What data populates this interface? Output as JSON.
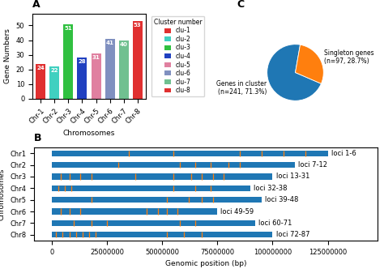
{
  "chart_data": [
    {
      "type": "bar",
      "title": "A",
      "categories": [
        "Chr-1",
        "Chr-2",
        "Chr-3",
        "Chr-4",
        "Chr-5",
        "Chr-6",
        "Chr-7",
        "Chr-8"
      ],
      "series": [
        {
          "name": "clu-1",
          "color": "#e03030",
          "values": [
            24,
            null,
            null,
            null,
            null,
            null,
            null,
            null
          ]
        },
        {
          "name": "clu-2",
          "color": "#40d0c0",
          "values": [
            null,
            22,
            null,
            null,
            null,
            null,
            null,
            null
          ]
        },
        {
          "name": "clu-3",
          "color": "#30c040",
          "values": [
            null,
            null,
            51,
            null,
            null,
            null,
            null,
            null
          ]
        },
        {
          "name": "clu-4",
          "color": "#2040c0",
          "values": [
            null,
            null,
            null,
            28,
            null,
            null,
            null,
            null
          ]
        },
        {
          "name": "clu-5",
          "color": "#e080a0",
          "values": [
            null,
            null,
            null,
            null,
            31,
            null,
            null,
            null
          ]
        },
        {
          "name": "clu-6",
          "color": "#8090c0",
          "values": [
            null,
            null,
            null,
            null,
            null,
            41,
            null,
            null
          ]
        },
        {
          "name": "clu-7",
          "color": "#70c090",
          "values": [
            null,
            null,
            null,
            null,
            null,
            null,
            40,
            null
          ]
        },
        {
          "name": "clu-8",
          "color": "#e03030",
          "values": [
            null,
            null,
            null,
            null,
            null,
            null,
            null,
            53
          ]
        }
      ],
      "x_label": "Chromosomes",
      "y_label": "Gene Numbers",
      "ylim": [
        0,
        58
      ],
      "yticks": [
        0,
        10,
        20,
        30,
        40,
        50
      ],
      "data_labels": true,
      "legend": "right",
      "legend_title": "Cluster number"
    },
    {
      "type": "pie",
      "title": "C",
      "values": [
        71.3,
        28.7
      ],
      "labels": [
        "Genes in cluster\n(n=241, 71.3%)",
        "Singleton genes\n(n=97, 28.7%)"
      ]
    },
    {
      "type": "bar",
      "orientation": "horizontal",
      "title": "B",
      "categories": [
        "Chr1",
        "Chr2",
        "Chr3",
        "Chr4",
        "Chr5",
        "Chr6",
        "Chr7",
        "Chr8"
      ],
      "values": [
        125000000,
        110000000,
        100000000,
        90000000,
        95000000,
        75000000,
        92000000,
        100000000
      ],
      "annotations": [
        "loci 1-6",
        "loci 7-12",
        "loci 13-31",
        "loci 32-38",
        "loci 39-48",
        "loci 49-59",
        "loci 60-71",
        "loci 72-87"
      ],
      "gene_positions": [
        [
          35000000,
          55000000,
          85000000,
          95000000,
          105000000,
          115000000
        ],
        [
          30000000,
          58000000,
          65000000,
          72000000,
          80000000,
          85000000
        ],
        [
          4000000,
          8000000,
          13000000,
          18000000,
          38000000,
          55000000,
          63000000,
          68000000,
          73000000,
          78000000
        ],
        [
          3000000,
          6000000,
          9000000,
          55000000,
          65000000,
          72000000
        ],
        [
          18000000,
          52000000,
          62000000,
          68000000,
          73000000
        ],
        [
          4000000,
          8000000,
          13000000,
          43000000,
          48000000,
          52000000,
          57000000
        ],
        [
          10000000,
          18000000,
          25000000,
          58000000,
          65000000
        ],
        [
          2000000,
          5000000,
          8000000,
          11000000,
          14000000,
          17000000,
          20000000,
          52000000,
          60000000,
          68000000
        ]
      ],
      "x_label": "Genomic position (bp)",
      "y_label": "Chromosomes",
      "xlim": [
        -8000000,
        147500000
      ],
      "xticks": [
        0,
        25000000,
        50000000,
        75000000,
        100000000,
        125000000
      ]
    }
  ]
}
